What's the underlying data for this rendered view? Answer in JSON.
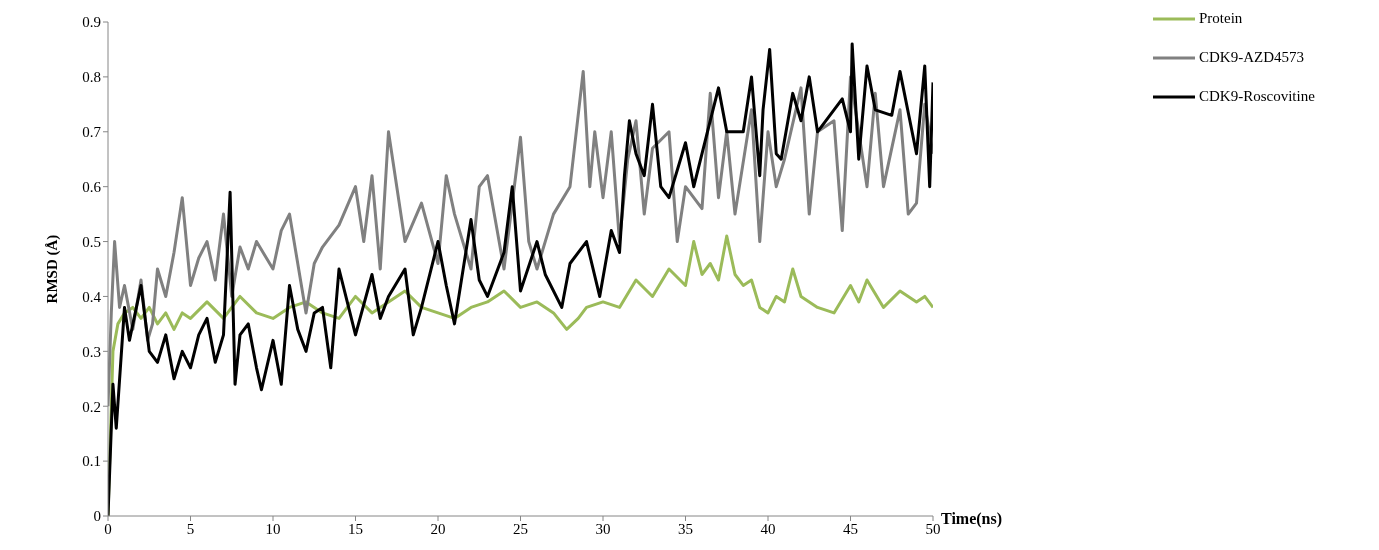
{
  "chart_data": {
    "type": "line",
    "xlabel": "Time(ns)",
    "ylabel": "RMSD (Å)",
    "xlim": [
      0,
      50
    ],
    "xticks": [
      0,
      5,
      10,
      15,
      20,
      25,
      30,
      35,
      40,
      45,
      50
    ],
    "ylim": [
      0,
      0.9
    ],
    "yticks": [
      0,
      0.1,
      0.2,
      0.3,
      0.4,
      0.5,
      0.6,
      0.7,
      0.8,
      0.9
    ],
    "grid": false,
    "legend": "top right",
    "marker": "none",
    "line_style": "solid",
    "series": [
      {
        "name": "Protein",
        "color": "#9bbb59",
        "x": [
          0,
          0.3,
          0.6,
          1,
          1.5,
          2,
          2.5,
          3,
          3.5,
          4,
          4.5,
          5,
          6,
          7,
          8,
          9,
          10,
          11,
          12,
          13,
          14,
          15,
          16,
          17,
          18,
          19,
          20,
          21,
          22,
          23,
          24,
          25,
          26,
          27,
          27.8,
          28.5,
          29,
          30,
          31,
          32,
          33,
          34,
          35,
          35.5,
          36,
          36.5,
          37,
          37.5,
          38,
          38.5,
          39,
          39.5,
          40,
          40.5,
          41,
          41.5,
          42,
          43,
          44,
          45,
          45.5,
          46,
          47,
          48,
          49,
          49.5,
          50
        ],
        "values": [
          0,
          0.3,
          0.35,
          0.37,
          0.38,
          0.36,
          0.38,
          0.35,
          0.37,
          0.34,
          0.37,
          0.36,
          0.39,
          0.36,
          0.4,
          0.37,
          0.36,
          0.38,
          0.39,
          0.37,
          0.36,
          0.4,
          0.37,
          0.39,
          0.41,
          0.38,
          0.37,
          0.36,
          0.38,
          0.39,
          0.41,
          0.38,
          0.39,
          0.37,
          0.34,
          0.36,
          0.38,
          0.39,
          0.38,
          0.43,
          0.4,
          0.45,
          0.42,
          0.5,
          0.44,
          0.46,
          0.43,
          0.51,
          0.44,
          0.42,
          0.43,
          0.38,
          0.37,
          0.4,
          0.39,
          0.45,
          0.4,
          0.38,
          0.37,
          0.42,
          0.39,
          0.43,
          0.38,
          0.41,
          0.39,
          0.4,
          0.38
        ]
      },
      {
        "name": "CDK9-AZD4573",
        "color": "#808080",
        "x": [
          0,
          0.2,
          0.4,
          0.7,
          1,
          1.5,
          2,
          2.4,
          2.7,
          3,
          3.5,
          4,
          4.5,
          5,
          5.5,
          6,
          6.5,
          7,
          7.5,
          8,
          8.5,
          9,
          10,
          10.5,
          11,
          12,
          12.5,
          13,
          14,
          15,
          15.5,
          16,
          16.5,
          17,
          18,
          19,
          20,
          20.5,
          21,
          22,
          22.5,
          23,
          24,
          25,
          25.5,
          26,
          27,
          28,
          28.8,
          29.2,
          29.5,
          30,
          30.5,
          31,
          31.5,
          32,
          32.5,
          33,
          34,
          34.5,
          35,
          36,
          36.5,
          37,
          37.5,
          38,
          39,
          39.5,
          40,
          40.5,
          41,
          42,
          42.5,
          43,
          44,
          44.5,
          45,
          46,
          46.5,
          47,
          48,
          48.5,
          49,
          49.5,
          50
        ],
        "values": [
          0.2,
          0.37,
          0.5,
          0.38,
          0.42,
          0.34,
          0.43,
          0.32,
          0.35,
          0.45,
          0.4,
          0.48,
          0.58,
          0.42,
          0.47,
          0.5,
          0.43,
          0.55,
          0.4,
          0.49,
          0.45,
          0.5,
          0.45,
          0.52,
          0.55,
          0.37,
          0.46,
          0.49,
          0.53,
          0.6,
          0.5,
          0.62,
          0.45,
          0.7,
          0.5,
          0.57,
          0.46,
          0.62,
          0.55,
          0.45,
          0.6,
          0.62,
          0.45,
          0.69,
          0.5,
          0.45,
          0.55,
          0.6,
          0.81,
          0.6,
          0.7,
          0.58,
          0.7,
          0.5,
          0.65,
          0.72,
          0.55,
          0.67,
          0.7,
          0.5,
          0.6,
          0.56,
          0.77,
          0.58,
          0.7,
          0.55,
          0.74,
          0.5,
          0.7,
          0.6,
          0.65,
          0.78,
          0.55,
          0.7,
          0.72,
          0.52,
          0.8,
          0.6,
          0.77,
          0.6,
          0.74,
          0.55,
          0.57,
          0.75,
          0.66
        ]
      },
      {
        "name": "CDK9-Roscovitine",
        "color": "#000000",
        "x": [
          0,
          0.3,
          0.5,
          1,
          1.3,
          2,
          2.5,
          3,
          3.5,
          4,
          4.5,
          5,
          5.5,
          6,
          6.5,
          7,
          7.4,
          7.7,
          8,
          8.5,
          9,
          9.3,
          10,
          10.5,
          11,
          11.5,
          12,
          12.5,
          13,
          13.5,
          14,
          14.5,
          15,
          16,
          16.5,
          17,
          18,
          18.5,
          19,
          20,
          20.5,
          21,
          22,
          22.5,
          23,
          24,
          24.5,
          25,
          26,
          26.5,
          27.5,
          28,
          29,
          29.8,
          30.5,
          31,
          31.3,
          31.6,
          32,
          32.5,
          33,
          33.5,
          34,
          35,
          35.5,
          36,
          37,
          37.5,
          38.5,
          39,
          39.5,
          39.7,
          40.1,
          40.5,
          40.8,
          41.5,
          42,
          42.5,
          43,
          43.5,
          44.5,
          45,
          45.1,
          45.5,
          46,
          46.5,
          47.5,
          48,
          49,
          49.5,
          49.8,
          50
        ],
        "values": [
          0,
          0.24,
          0.16,
          0.38,
          0.32,
          0.42,
          0.3,
          0.28,
          0.33,
          0.25,
          0.3,
          0.27,
          0.33,
          0.36,
          0.28,
          0.33,
          0.59,
          0.24,
          0.33,
          0.35,
          0.27,
          0.23,
          0.32,
          0.24,
          0.42,
          0.34,
          0.3,
          0.37,
          0.38,
          0.27,
          0.45,
          0.39,
          0.33,
          0.44,
          0.36,
          0.4,
          0.45,
          0.33,
          0.38,
          0.5,
          0.42,
          0.35,
          0.54,
          0.43,
          0.4,
          0.48,
          0.6,
          0.41,
          0.5,
          0.44,
          0.38,
          0.46,
          0.5,
          0.4,
          0.52,
          0.48,
          0.62,
          0.72,
          0.66,
          0.62,
          0.75,
          0.6,
          0.58,
          0.68,
          0.6,
          0.66,
          0.78,
          0.7,
          0.7,
          0.8,
          0.62,
          0.74,
          0.85,
          0.66,
          0.65,
          0.77,
          0.72,
          0.8,
          0.7,
          0.72,
          0.76,
          0.7,
          0.86,
          0.65,
          0.82,
          0.74,
          0.73,
          0.81,
          0.66,
          0.82,
          0.6,
          0.79
        ]
      }
    ]
  }
}
